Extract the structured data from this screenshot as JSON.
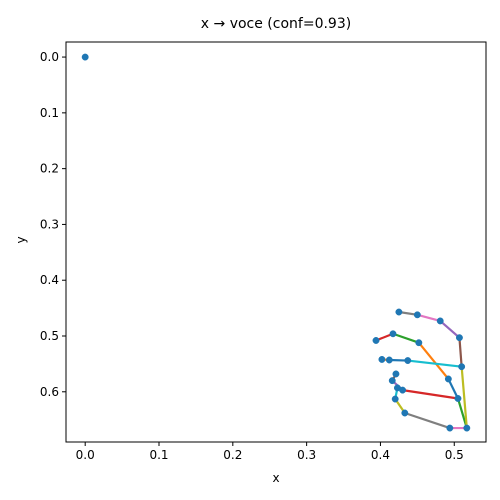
{
  "chart_data": {
    "type": "scatter",
    "title": "x → voce (conf=0.93)",
    "xlabel": "x",
    "ylabel": "y",
    "xlim": [
      -0.026,
      0.543
    ],
    "ylim": [
      0.69,
      -0.027
    ],
    "y_inverted": true,
    "xticks": [
      0.0,
      0.1,
      0.2,
      0.3,
      0.4,
      0.5
    ],
    "yticks": [
      0.0,
      0.1,
      0.2,
      0.3,
      0.4,
      0.5,
      0.6
    ],
    "xtick_labels": [
      "0.0",
      "0.1",
      "0.2",
      "0.3",
      "0.4",
      "0.5"
    ],
    "ytick_labels": [
      "0.0",
      "0.1",
      "0.2",
      "0.3",
      "0.4",
      "0.5",
      "0.6"
    ],
    "grid": false,
    "point_color": "#1f77b4",
    "points": [
      {
        "x": 0.0,
        "y": 0.0
      },
      {
        "x": 0.517,
        "y": 0.665
      },
      {
        "x": 0.494,
        "y": 0.665
      },
      {
        "x": 0.433,
        "y": 0.638
      },
      {
        "x": 0.42,
        "y": 0.613
      },
      {
        "x": 0.423,
        "y": 0.593
      },
      {
        "x": 0.43,
        "y": 0.597
      },
      {
        "x": 0.416,
        "y": 0.58
      },
      {
        "x": 0.421,
        "y": 0.568
      },
      {
        "x": 0.505,
        "y": 0.612
      },
      {
        "x": 0.492,
        "y": 0.577
      },
      {
        "x": 0.452,
        "y": 0.512
      },
      {
        "x": 0.417,
        "y": 0.496
      },
      {
        "x": 0.394,
        "y": 0.508
      },
      {
        "x": 0.51,
        "y": 0.555
      },
      {
        "x": 0.437,
        "y": 0.544
      },
      {
        "x": 0.412,
        "y": 0.543
      },
      {
        "x": 0.402,
        "y": 0.542
      },
      {
        "x": 0.507,
        "y": 0.503
      },
      {
        "x": 0.481,
        "y": 0.473
      },
      {
        "x": 0.45,
        "y": 0.462
      },
      {
        "x": 0.425,
        "y": 0.457
      }
    ],
    "segments": [
      {
        "from": 1,
        "to": 2,
        "color": "#e377c2"
      },
      {
        "from": 2,
        "to": 3,
        "color": "#7f7f7f"
      },
      {
        "from": 3,
        "to": 4,
        "color": "#bcbd22"
      },
      {
        "from": 4,
        "to": 5,
        "color": "#17becf"
      },
      {
        "from": 1,
        "to": 9,
        "color": "#2ca02c"
      },
      {
        "from": 9,
        "to": 6,
        "color": "#d62728"
      },
      {
        "from": 6,
        "to": 7,
        "color": "#9467bd"
      },
      {
        "from": 7,
        "to": 8,
        "color": "#8c564b"
      },
      {
        "from": 9,
        "to": 10,
        "color": "#1f77b4"
      },
      {
        "from": 10,
        "to": 11,
        "color": "#ff7f0e"
      },
      {
        "from": 11,
        "to": 12,
        "color": "#2ca02c"
      },
      {
        "from": 12,
        "to": 13,
        "color": "#d62728"
      },
      {
        "from": 1,
        "to": 14,
        "color": "#bcbd22"
      },
      {
        "from": 14,
        "to": 15,
        "color": "#17becf"
      },
      {
        "from": 15,
        "to": 16,
        "color": "#1f77b4"
      },
      {
        "from": 16,
        "to": 17,
        "color": "#ff7f0e"
      },
      {
        "from": 14,
        "to": 18,
        "color": "#8c564b"
      },
      {
        "from": 18,
        "to": 19,
        "color": "#9467bd"
      },
      {
        "from": 19,
        "to": 20,
        "color": "#e377c2"
      },
      {
        "from": 20,
        "to": 21,
        "color": "#7f7f7f"
      }
    ]
  }
}
